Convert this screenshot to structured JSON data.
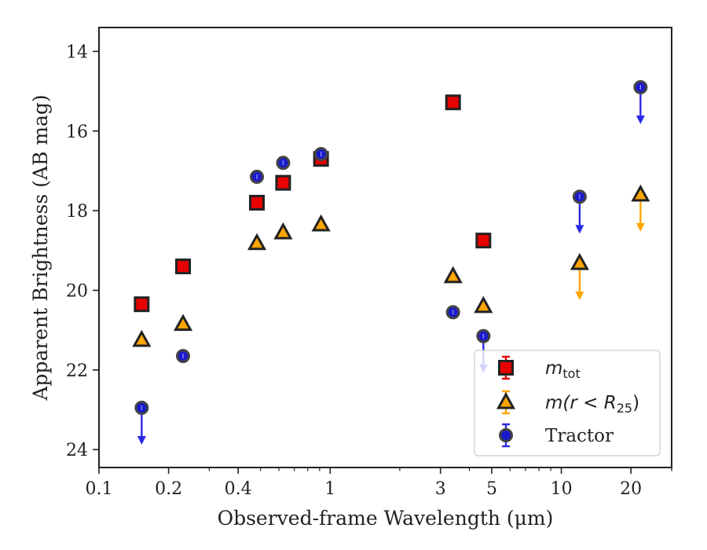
{
  "chart_data": {
    "type": "scatter",
    "x_scale": "log",
    "y_inverted": true,
    "xlabel": "Observed-frame Wavelength (μm)",
    "ylabel": "Apparent Brightness (AB mag)",
    "xlim": [
      0.1,
      30
    ],
    "ylim": [
      24.45,
      13.4
    ],
    "x_ticks": [
      0.1,
      0.2,
      0.4,
      1,
      3,
      5,
      10,
      20
    ],
    "x_tick_labels": [
      "0.1",
      "0.2",
      "0.4",
      "1",
      "3",
      "5",
      "10",
      "20"
    ],
    "y_ticks": [
      14,
      16,
      18,
      20,
      22,
      24
    ],
    "y_tick_labels": [
      "14",
      "16",
      "18",
      "20",
      "22",
      "24"
    ],
    "legend_position": "lower right",
    "series": [
      {
        "name": "m_tot",
        "marker": "square",
        "color": "#e60000",
        "points": [
          {
            "x": 0.153,
            "y": 20.35
          },
          {
            "x": 0.231,
            "y": 19.4
          },
          {
            "x": 0.482,
            "y": 17.8
          },
          {
            "x": 0.626,
            "y": 17.3
          },
          {
            "x": 0.913,
            "y": 16.7
          },
          {
            "x": 3.4,
            "y": 15.28
          },
          {
            "x": 4.6,
            "y": 18.75
          }
        ]
      },
      {
        "name": "m(r < R25)",
        "marker": "triangle",
        "color": "#ffa500",
        "points": [
          {
            "x": 0.153,
            "y": 21.25
          },
          {
            "x": 0.231,
            "y": 20.85
          },
          {
            "x": 0.482,
            "y": 18.82
          },
          {
            "x": 0.626,
            "y": 18.55
          },
          {
            "x": 0.913,
            "y": 18.35
          },
          {
            "x": 3.4,
            "y": 19.65
          },
          {
            "x": 4.6,
            "y": 20.4
          },
          {
            "x": 12,
            "y": 19.32,
            "upper_limit": true
          },
          {
            "x": 22,
            "y": 17.6,
            "upper_limit": true
          }
        ]
      },
      {
        "name": "Tractor",
        "marker": "circle",
        "color": "#1a1acc",
        "points": [
          {
            "x": 0.153,
            "y": 22.95,
            "upper_limit": true
          },
          {
            "x": 0.231,
            "y": 21.65
          },
          {
            "x": 0.482,
            "y": 17.15
          },
          {
            "x": 0.626,
            "y": 16.8
          },
          {
            "x": 0.913,
            "y": 16.58
          },
          {
            "x": 3.4,
            "y": 20.55
          },
          {
            "x": 4.6,
            "y": 21.15,
            "upper_limit": true
          },
          {
            "x": 12,
            "y": 17.65,
            "upper_limit": true
          },
          {
            "x": 22,
            "y": 14.9,
            "upper_limit": true
          }
        ]
      }
    ],
    "legend": {
      "entries": [
        {
          "series": 0,
          "label_base": "m",
          "label_sub": "tot"
        },
        {
          "series": 1,
          "label_pre": "m(r < R",
          "label_sub": "25",
          "label_post": ")"
        },
        {
          "series": 2,
          "label_plain": "Tractor"
        }
      ]
    }
  }
}
